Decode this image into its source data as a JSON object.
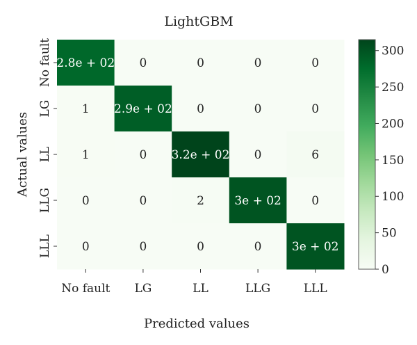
{
  "chart_data": {
    "type": "heatmap",
    "title": "LightGBM",
    "xlabel": "Predicted values",
    "ylabel": "Actual values",
    "x_categories": [
      "No fault",
      "LG",
      "LL",
      "LLG",
      "LLL"
    ],
    "y_categories": [
      "No fault",
      "LG",
      "LL",
      "LLG",
      "LLL"
    ],
    "values": [
      [
        280,
        0,
        0,
        0,
        0
      ],
      [
        1,
        290,
        0,
        0,
        0
      ],
      [
        1,
        0,
        320,
        0,
        6
      ],
      [
        0,
        0,
        2,
        300,
        0
      ],
      [
        0,
        0,
        0,
        0,
        300
      ]
    ],
    "labels": [
      [
        "2.8e + 02",
        "0",
        "0",
        "0",
        "0"
      ],
      [
        "1",
        "2.9e + 02",
        "0",
        "0",
        "0"
      ],
      [
        "1",
        "0",
        "3.2e + 02",
        "0",
        "6"
      ],
      [
        "0",
        "0",
        "2",
        "3e + 02",
        "0"
      ],
      [
        "0",
        "0",
        "0",
        "0",
        "3e + 02"
      ]
    ],
    "colorbar": {
      "min": 0,
      "max": 315,
      "ticks": [
        0,
        50,
        100,
        150,
        200,
        250,
        300
      ],
      "colors": [
        "#f7fcf5",
        "#e5f5e0",
        "#c7e9c0",
        "#a1d99b",
        "#74c476",
        "#41ab5d",
        "#238b45",
        "#006d2c",
        "#00441b"
      ]
    },
    "grid": false
  }
}
